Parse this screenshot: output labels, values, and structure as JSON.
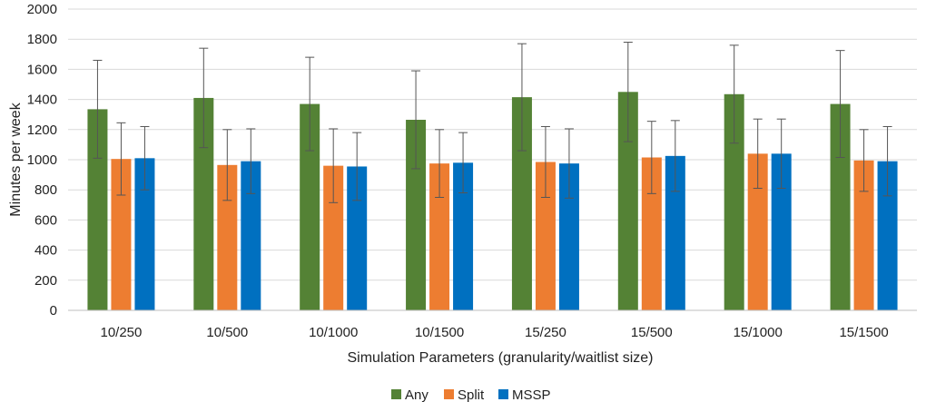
{
  "chart_data": {
    "type": "bar",
    "title": "",
    "xlabel": "Simulation Parameters (granularity/waitlist size)",
    "ylabel": "Minutes per week",
    "ylim": [
      0,
      2000
    ],
    "yticks": [
      0,
      200,
      400,
      600,
      800,
      1000,
      1200,
      1400,
      1600,
      1800,
      2000
    ],
    "grid": true,
    "legend_position": "bottom",
    "categories": [
      "10/250",
      "10/500",
      "10/1000",
      "10/1500",
      "15/250",
      "15/500",
      "15/1000",
      "15/1500"
    ],
    "series": [
      {
        "name": "Any",
        "color": "#548235",
        "values": [
          1335,
          1410,
          1370,
          1265,
          1415,
          1450,
          1435,
          1370
        ],
        "errors": [
          325,
          330,
          310,
          325,
          355,
          330,
          325,
          355
        ]
      },
      {
        "name": "Split",
        "color": "#ed7d31",
        "values": [
          1005,
          965,
          960,
          975,
          985,
          1015,
          1040,
          995
        ],
        "errors": [
          240,
          235,
          245,
          225,
          235,
          240,
          230,
          205
        ]
      },
      {
        "name": "MSSP",
        "color": "#0070c0",
        "values": [
          1010,
          990,
          955,
          980,
          975,
          1025,
          1040,
          990
        ],
        "errors": [
          210,
          215,
          225,
          200,
          230,
          235,
          230,
          230
        ]
      }
    ]
  }
}
